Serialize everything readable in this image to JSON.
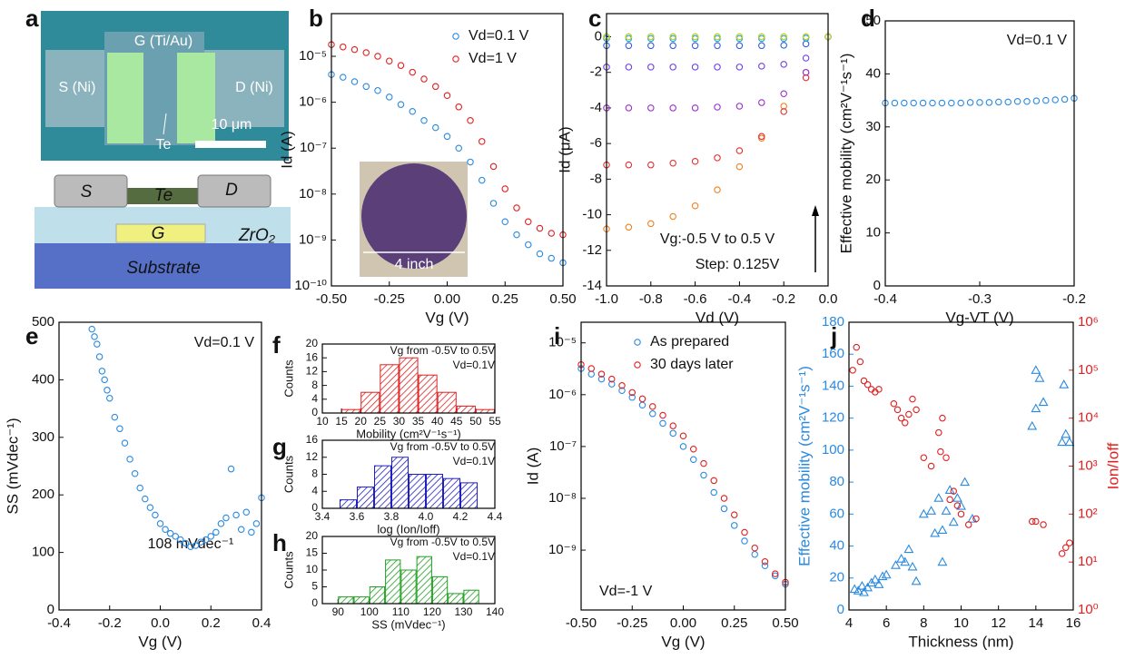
{
  "panel_a": {
    "label": "a",
    "texts": [
      "G (Ti/Au)",
      "S (Ni)",
      "D (Ni)",
      "10 μm",
      "Te",
      "S",
      "Te",
      "D",
      "G",
      "ZrO₂",
      "Substrate"
    ]
  },
  "chart_data": [
    {
      "panel": "b",
      "type": "scatter",
      "ylog": true,
      "xlabel": "Vg (V)",
      "ylabel": "Id (A)",
      "legend": "upper right",
      "annotations": [
        "4 inch"
      ],
      "xlim": [
        -0.5,
        0.5
      ],
      "xticks": [
        {
          "value": -0.5,
          "label": "-0.50"
        },
        -0.25,
        {
          "value": 0,
          "label": "0.00"
        },
        0.25,
        {
          "value": 0.5,
          "label": "0.50"
        }
      ],
      "ylim": [
        1e-10,
        8.5e-05
      ],
      "yticks": [
        {
          "value": 1e-10,
          "label": "10⁻¹⁰"
        },
        {
          "value": 1e-09,
          "label": "10⁻⁹"
        },
        {
          "value": 1e-08,
          "label": "10⁻⁸"
        },
        {
          "value": 1e-07,
          "label": "10⁻⁷"
        },
        {
          "value": 1e-06,
          "label": "10⁻⁶"
        },
        {
          "value": 1e-05,
          "label": "10⁻⁵"
        }
      ],
      "x": [
        -0.5,
        -0.45,
        -0.4,
        -0.35,
        -0.3,
        -0.25,
        -0.2,
        -0.15,
        -0.1,
        -0.05,
        0,
        0.05,
        0.1,
        0.15,
        0.2,
        0.25,
        0.3,
        0.35,
        0.4,
        0.45,
        0.5
      ],
      "series": [
        {
          "name": "Vd=0.1 V",
          "color": "#2a8ae0",
          "marker": "circle",
          "values": [
            4e-06,
            3.5e-06,
            2.8e-06,
            2.2e-06,
            1.8e-06,
            1.3e-06,
            8.9e-07,
            6.3e-07,
            4e-07,
            2.8e-07,
            1.8e-07,
            1e-07,
            5e-08,
            2e-08,
            6.3e-09,
            2.5e-09,
            1.3e-09,
            7.9e-10,
            5e-10,
            4e-10,
            3.2e-10
          ]
        },
        {
          "name": "Vd=1 V",
          "color": "#e02020",
          "marker": "circle",
          "values": [
            1.8e-05,
            1.6e-05,
            1.4e-05,
            1.2e-05,
            1e-05,
            7.9e-06,
            6.3e-06,
            4.5e-06,
            3.2e-06,
            2.2e-06,
            1.4e-06,
            7.9e-07,
            4e-07,
            1.4e-07,
            4e-08,
            1.3e-08,
            5e-09,
            2.5e-09,
            1.8e-09,
            1.4e-09,
            1.3e-09
          ]
        }
      ]
    },
    {
      "panel": "c",
      "type": "scatter",
      "xlabel": "Vd (V)",
      "ylabel": "Id (μA)",
      "annotations": [
        "Vg:-0.5 V to 0.5 V",
        "Step: 0.125V"
      ],
      "xlim": [
        -1,
        0
      ],
      "xticks": [
        {
          "value": -1,
          "label": "-1.0"
        },
        -0.8,
        -0.6,
        -0.4,
        -0.2,
        {
          "value": 0,
          "label": "0.0"
        }
      ],
      "ylim": [
        -14,
        1.3
      ],
      "yticks": [
        -14,
        -12,
        -10,
        -8,
        -6,
        -4,
        -2,
        0
      ],
      "x": [
        -1,
        -0.9,
        -0.8,
        -0.7,
        -0.6,
        -0.5,
        -0.4,
        -0.3,
        -0.2,
        -0.1,
        0
      ],
      "series": [
        {
          "color": "#f08020",
          "marker": "circle",
          "values": [
            -10.8,
            -10.7,
            -10.5,
            -10.1,
            -9.5,
            -8.6,
            -7.3,
            -5.7,
            -3.9,
            -2.0,
            0
          ]
        },
        {
          "color": "#e03030",
          "marker": "circle",
          "values": [
            -7.2,
            -7.2,
            -7.2,
            -7.1,
            -7.0,
            -6.8,
            -6.4,
            -5.6,
            -4.2,
            -2.3,
            0
          ]
        },
        {
          "color": "#9a30d0",
          "marker": "circle",
          "values": [
            -4.0,
            -4.0,
            -4.0,
            -4.0,
            -4.0,
            -3.95,
            -3.9,
            -3.7,
            -3.2,
            -2.0,
            0
          ]
        },
        {
          "color": "#7040e0",
          "marker": "circle",
          "values": [
            -1.7,
            -1.7,
            -1.7,
            -1.7,
            -1.7,
            -1.7,
            -1.7,
            -1.65,
            -1.55,
            -1.2,
            0
          ]
        },
        {
          "color": "#3060e0",
          "marker": "circle",
          "values": [
            -0.5,
            -0.5,
            -0.5,
            -0.5,
            -0.5,
            -0.5,
            -0.5,
            -0.5,
            -0.48,
            -0.4,
            0
          ]
        },
        {
          "color": "#20a0e0",
          "marker": "circle",
          "values": [
            -0.1,
            -0.1,
            -0.1,
            -0.1,
            -0.1,
            -0.1,
            -0.1,
            -0.1,
            -0.1,
            -0.08,
            0
          ]
        },
        {
          "color": "#20c0a0",
          "marker": "circle",
          "values": [
            0,
            0,
            0,
            0,
            0,
            0,
            0,
            0,
            0,
            0,
            0
          ]
        },
        {
          "color": "#60d040",
          "marker": "circle",
          "values": [
            0,
            0,
            0,
            0,
            0,
            0,
            0,
            0,
            0,
            0,
            0
          ]
        },
        {
          "color": "#d0d020",
          "marker": "circle",
          "values": [
            0,
            0,
            0,
            0,
            0,
            0,
            0,
            0,
            0,
            0,
            0
          ]
        }
      ]
    },
    {
      "panel": "d",
      "type": "scatter",
      "xlabel": "Vg-VT (V)",
      "ylabel": "Effective mobility (cm²V⁻¹s⁻¹)",
      "annotations": [
        "Vd=0.1 V"
      ],
      "xlim": [
        -0.4,
        -0.2
      ],
      "xticks": [
        -0.4,
        -0.3,
        -0.2
      ],
      "ylim": [
        0,
        50
      ],
      "yticks": [
        0,
        10,
        20,
        30,
        40,
        50
      ],
      "x": [
        -0.4,
        -0.39,
        -0.38,
        -0.37,
        -0.36,
        -0.35,
        -0.34,
        -0.33,
        -0.32,
        -0.31,
        -0.3,
        -0.29,
        -0.28,
        -0.27,
        -0.26,
        -0.25,
        -0.24,
        -0.23,
        -0.22,
        -0.21,
        -0.2
      ],
      "series": [
        {
          "color": "#2a8ae0",
          "marker": "circle",
          "values": [
            34.5,
            34.5,
            34.5,
            34.5,
            34.5,
            34.5,
            34.5,
            34.5,
            34.5,
            34.6,
            34.6,
            34.6,
            34.7,
            34.7,
            34.8,
            34.8,
            34.9,
            35.0,
            35.1,
            35.2,
            35.4
          ]
        }
      ]
    },
    {
      "panel": "e",
      "type": "scatter",
      "xlabel": "Vg (V)",
      "ylabel": "SS (mVdec⁻¹)",
      "annotations": [
        "Vd=0.1 V",
        "108 mVdec⁻¹"
      ],
      "xlim": [
        -0.4,
        0.4
      ],
      "xticks": [
        -0.4,
        -0.2,
        {
          "value": 0,
          "label": "0.0"
        },
        0.2,
        0.4
      ],
      "ylim": [
        0,
        500
      ],
      "yticks": [
        0,
        100,
        200,
        300,
        400,
        500
      ],
      "series": [
        {
          "color": "#2a8ae0",
          "marker": "circle",
          "x": [
            -0.27,
            -0.26,
            -0.25,
            -0.24,
            -0.23,
            -0.22,
            -0.21,
            -0.2,
            -0.18,
            -0.16,
            -0.14,
            -0.12,
            -0.1,
            -0.08,
            -0.06,
            -0.04,
            -0.02,
            0,
            0.02,
            0.04,
            0.06,
            0.08,
            0.1,
            0.12,
            0.14,
            0.16,
            0.18,
            0.2,
            0.22,
            0.24,
            0.26,
            0.28,
            0.3,
            0.32,
            0.34,
            0.36,
            0.38,
            0.4
          ],
          "values": [
            488,
            475,
            462,
            440,
            415,
            400,
            382,
            368,
            335,
            315,
            290,
            262,
            237,
            212,
            193,
            178,
            165,
            150,
            140,
            133,
            128,
            122,
            116,
            110,
            112,
            118,
            122,
            128,
            135,
            150,
            160,
            245,
            165,
            140,
            170,
            135,
            150,
            195
          ]
        }
      ]
    },
    {
      "panel": "f",
      "type": "histogram",
      "xlabel": "Mobility (cm²V⁻¹s⁻¹)",
      "ylabel": "Counts",
      "annotations": [
        "Vg from -0.5V to 0.5V",
        "Vd=0.1V"
      ],
      "color": "#e02020",
      "xlim": [
        10,
        55
      ],
      "xticks": [
        10,
        15,
        20,
        25,
        30,
        35,
        40,
        45,
        50,
        55
      ],
      "ylim": [
        0,
        20
      ],
      "yticks": [
        0,
        4,
        8,
        12,
        16,
        20
      ],
      "bins": [
        15,
        20,
        25,
        30,
        35,
        40,
        45,
        50,
        55
      ],
      "values": [
        1,
        6,
        14,
        16,
        11,
        6,
        2,
        1
      ]
    },
    {
      "panel": "g",
      "type": "histogram",
      "xlabel": "log (Ion/Ioff)",
      "ylabel": "Counts",
      "annotations": [
        "Vg from -0.5V to 0.5V",
        "Vd=0.1V"
      ],
      "color": "#2020c0",
      "xlim": [
        3.4,
        4.4
      ],
      "xticks": [
        3.4,
        3.6,
        3.8,
        {
          "value": 4,
          "label": "4.0"
        },
        4.2,
        4.4
      ],
      "ylim": [
        0,
        16
      ],
      "yticks": [
        0,
        4,
        8,
        12,
        16
      ],
      "bins": [
        3.5,
        3.6,
        3.7,
        3.8,
        3.9,
        4.0,
        4.1,
        4.2,
        4.3
      ],
      "values": [
        2,
        5,
        10,
        12,
        8,
        8,
        7,
        6
      ]
    },
    {
      "panel": "h",
      "type": "histogram",
      "xlabel": "SS (mVdec⁻¹)",
      "ylabel": "Counts",
      "annotations": [
        "Vg from -0.5V to 0.5V",
        "Vd=0.1V"
      ],
      "color": "#20a020",
      "xlim": [
        85,
        140
      ],
      "xticks": [
        90,
        100,
        110,
        120,
        130,
        140
      ],
      "ylim": [
        0,
        20
      ],
      "yticks": [
        0,
        5,
        10,
        15,
        20
      ],
      "bins": [
        90,
        95,
        100,
        105,
        110,
        115,
        120,
        125,
        130,
        135
      ],
      "values": [
        2,
        2,
        5,
        13,
        10,
        14,
        8,
        3,
        4
      ]
    },
    {
      "panel": "i",
      "type": "scatter",
      "ylog": true,
      "xlabel": "Vg (V)",
      "ylabel": "Id (A)",
      "legend": "upper right",
      "annotations": [
        "Vd=-1 V"
      ],
      "xlim": [
        -0.5,
        0.5
      ],
      "xticks": [
        {
          "value": -0.5,
          "label": "-0.50"
        },
        -0.25,
        {
          "value": 0,
          "label": "0.00"
        },
        0.25,
        {
          "value": 0.5,
          "label": "0.50"
        }
      ],
      "ylim": [
        7e-11,
        2.5e-05
      ],
      "yticks": [
        {
          "value": 1e-09,
          "label": "10⁻⁹"
        },
        {
          "value": 1e-08,
          "label": "10⁻⁸"
        },
        {
          "value": 1e-07,
          "label": "10⁻⁷"
        },
        {
          "value": 1e-06,
          "label": "10⁻⁶"
        },
        {
          "value": 1e-05,
          "label": "10⁻⁵"
        }
      ],
      "x": [
        -0.5,
        -0.45,
        -0.4,
        -0.35,
        -0.3,
        -0.25,
        -0.2,
        -0.15,
        -0.1,
        -0.05,
        0,
        0.05,
        0.1,
        0.15,
        0.2,
        0.25,
        0.3,
        0.35,
        0.4,
        0.45,
        0.5
      ],
      "series": [
        {
          "name": "As prepared",
          "color": "#2a8ae0",
          "marker": "circle",
          "values": [
            3.2e-06,
            2.5e-06,
            2e-06,
            1.6e-06,
            1.2e-06,
            8.9e-07,
            6.3e-07,
            4.3e-07,
            2.8e-07,
            1.8e-07,
            1e-07,
            5.6e-08,
            2.8e-08,
            1.3e-08,
            6.3e-09,
            3e-09,
            1.5e-09,
            8.3e-10,
            5e-10,
            3.2e-10,
            2.2e-10
          ]
        },
        {
          "name": "30 days later",
          "color": "#e02020",
          "marker": "circle",
          "values": [
            3.8e-06,
            3.2e-06,
            2.5e-06,
            2e-06,
            1.5e-06,
            1.1e-06,
            8.3e-07,
            5.9e-07,
            4e-07,
            2.5e-07,
            1.6e-07,
            8.9e-08,
            4.7e-08,
            2.2e-08,
            1e-08,
            4.8e-09,
            2.2e-09,
            1.1e-09,
            6e-10,
            3.5e-10,
            2.4e-10
          ]
        }
      ]
    },
    {
      "panel": "j",
      "type": "scatter",
      "y2log": true,
      "xlabel": "Thickness (nm)",
      "ylabel": "Effective mobility (cm²V⁻¹s⁻¹)",
      "y2label": "Ion/Ioff",
      "xlim": [
        4,
        16
      ],
      "xticks": [
        4,
        6,
        8,
        10,
        12,
        14,
        16
      ],
      "ylim": [
        0,
        180
      ],
      "yticks": [
        0,
        20,
        40,
        60,
        80,
        100,
        120,
        140,
        160,
        180
      ],
      "y2lim": [
        1,
        1000000.0
      ],
      "y2ticks": [
        {
          "value": 1,
          "label": "10⁰"
        },
        {
          "value": 10,
          "label": "10¹"
        },
        {
          "value": 100,
          "label": "10²"
        },
        {
          "value": 1000,
          "label": "10³"
        },
        {
          "value": 10000,
          "label": "10⁴"
        },
        {
          "value": 100000,
          "label": "10⁵"
        },
        {
          "value": 1000000,
          "label": "10⁶"
        }
      ],
      "series": [
        {
          "color": "#2a8ae0",
          "marker": "triangle",
          "x": [
            4.3,
            4.5,
            4.7,
            4.8,
            5,
            5.2,
            5.4,
            5.6,
            5.8,
            6,
            6.5,
            6.8,
            7,
            7.2,
            7.4,
            7.6,
            8,
            8.4,
            8.6,
            8.8,
            9,
            9,
            9.2,
            9.4,
            9.6,
            9.8,
            10,
            10.2,
            10.6,
            13.8,
            14,
            14,
            14.2,
            14.4,
            15.4,
            15.5,
            15.6,
            15.8
          ],
          "values": [
            13,
            12,
            15,
            11,
            14,
            17,
            19,
            16,
            21,
            22,
            28,
            32,
            30,
            38,
            27,
            18,
            60,
            62,
            48,
            70,
            50,
            30,
            62,
            75,
            55,
            70,
            65,
            80,
            57,
            115,
            150,
            126,
            145,
            130,
            105,
            141,
            110,
            105
          ]
        },
        {
          "color": "#e02020",
          "marker": "circle",
          "axis": "y2",
          "x": [
            4.2,
            4.4,
            4.6,
            4.8,
            5,
            5.2,
            5.4,
            5.6,
            6.4,
            6.6,
            6.8,
            7,
            7.2,
            7.4,
            7.6,
            8,
            8.4,
            8.8,
            8.9,
            9,
            9.2,
            9.4,
            9.6,
            9.8,
            10,
            10.4,
            10.8,
            13.8,
            14,
            14.4,
            15.4,
            15.6,
            15.8
          ],
          "values": [
            100000,
            300000,
            150000,
            60000,
            50000,
            40000,
            35000,
            40000,
            20000,
            15000,
            10000,
            8000,
            12000,
            25000,
            15000,
            1500,
            1000,
            5000,
            2000,
            10000,
            1500,
            200,
            300,
            150,
            100,
            60,
            80,
            70,
            70,
            60,
            15,
            20,
            25
          ]
        }
      ]
    }
  ]
}
